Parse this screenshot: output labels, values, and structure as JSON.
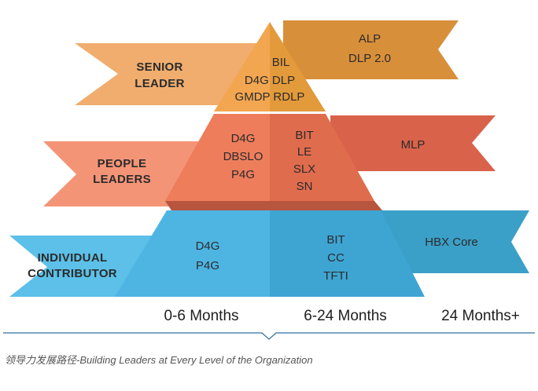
{
  "colors": {
    "senior_left": "#f0ad6e",
    "senior_right": "#d88f3a",
    "senior_peak_left": "#f2a650",
    "senior_peak_right": "#e39a3b",
    "people_left": "#f49477",
    "people_right": "#d9624a",
    "people_tri_left": "#ee7d5c",
    "people_tri_right": "#e06c4e",
    "ic_left": "#5cc0e9",
    "ic_right": "#3aa0c8",
    "ic_tri_left": "#4eb5e3",
    "ic_tri_right": "#3ea5d3",
    "divider": "#2f6fa0"
  },
  "levels": {
    "senior": {
      "line1": "SENIOR",
      "line2": "LEADER"
    },
    "people": {
      "line1": "PEOPLE",
      "line2": "LEADERS"
    },
    "individual": {
      "line1": "INDIVIDUAL",
      "line2": "CONTRIBUTOR"
    }
  },
  "programs": {
    "senior_right_band": [
      "ALP",
      "DLP 2.0"
    ],
    "senior_peak": {
      "top": "BIL",
      "row2": "D4G DLP",
      "row3": "GMDP RDLP"
    },
    "people_left_col": [
      "D4G",
      "DBSLO",
      "P4G"
    ],
    "people_mid_col": [
      "BIT",
      "LE",
      "SLX",
      "SN"
    ],
    "people_right_band": "MLP",
    "ic_left_col": [
      "D4G",
      "P4G"
    ],
    "ic_mid_col": [
      "BIT",
      "CC",
      "TFTI"
    ],
    "ic_right_band": "HBX Core"
  },
  "timeline": [
    "0-6 Months",
    "6-24 Months",
    "24 Months+"
  ],
  "caption": "领导力发展路径-Building Leaders at Every Level of the Organization"
}
